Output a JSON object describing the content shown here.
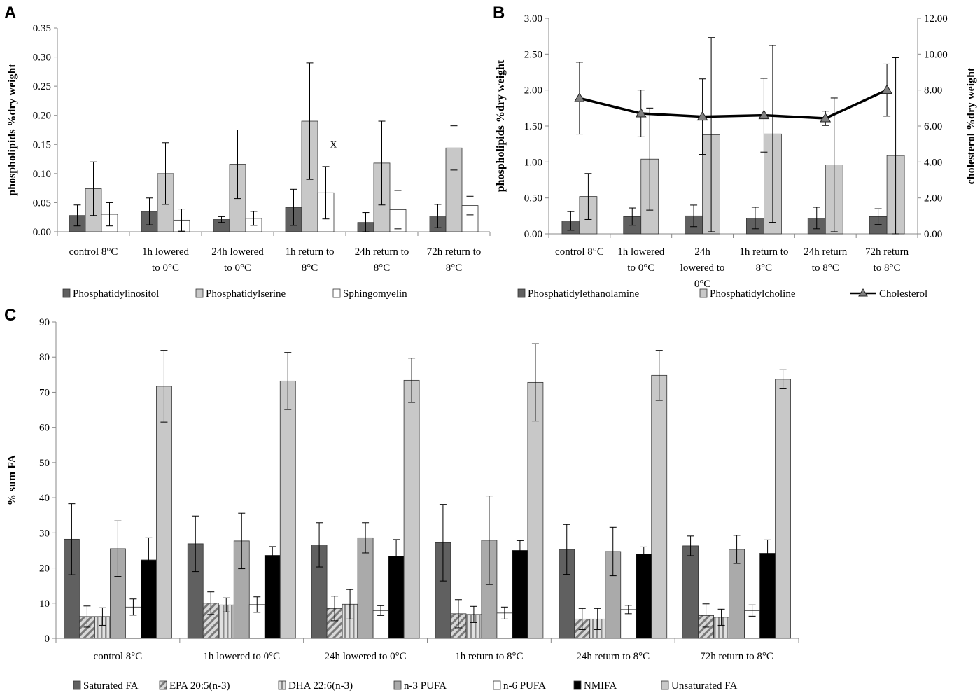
{
  "chart_data": [
    {
      "panel": "A",
      "type": "bar",
      "ylabel": "phospholipids %dry weight",
      "ylim": [
        0,
        0.35
      ],
      "yticks": [
        "0.00",
        "0.05",
        "0.10",
        "0.15",
        "0.20",
        "0.25",
        "0.30",
        "0.35"
      ],
      "categories": [
        [
          "control 8°C"
        ],
        [
          "1h lowered",
          "to 0°C"
        ],
        [
          "24h lowered",
          "to 0°C"
        ],
        [
          "1h return to",
          "8°C"
        ],
        [
          "24h return to",
          "8°C"
        ],
        [
          "72h return to",
          "8°C"
        ]
      ],
      "series": [
        {
          "name": "Phosphatidylinositol",
          "color": "#606060",
          "values": [
            0.028,
            0.035,
            0.021,
            0.042,
            0.016,
            0.027
          ],
          "errors": [
            0.018,
            0.023,
            0.005,
            0.031,
            0.017,
            0.02
          ]
        },
        {
          "name": "Phosphatidylserine",
          "color": "#c8c8c8",
          "values": [
            0.074,
            0.1,
            0.116,
            0.19,
            0.118,
            0.144
          ],
          "errors": [
            0.046,
            0.053,
            0.059,
            0.1,
            0.072,
            0.038
          ]
        },
        {
          "name": "Sphingomyelin",
          "color": "#ffffff",
          "values": [
            0.03,
            0.02,
            0.023,
            0.067,
            0.038,
            0.045
          ],
          "errors": [
            0.02,
            0.019,
            0.012,
            0.045,
            0.033,
            0.016
          ]
        }
      ],
      "annotation": "x",
      "legend_position": "bottom",
      "grid": false
    },
    {
      "panel": "B",
      "type": "bar+line",
      "ylabel": "phospholipids %dry weight",
      "y2label": "cholesterol %dry weight",
      "ylim": [
        0,
        3.0
      ],
      "y2lim": [
        0,
        12.0
      ],
      "yticks": [
        "0.00",
        "0.50",
        "1.00",
        "1.50",
        "2.00",
        "2.50",
        "3.00"
      ],
      "y2ticks": [
        "0.00",
        "2.00",
        "4.00",
        "6.00",
        "8.00",
        "10.00",
        "12.00"
      ],
      "categories": [
        [
          "control 8°C"
        ],
        [
          "1h lowered",
          "to 0°C"
        ],
        [
          "24h",
          "lowered to",
          "0°C"
        ],
        [
          "1h return to",
          "8°C"
        ],
        [
          "24h return",
          "to 8°C"
        ],
        [
          "72h return",
          "to 8°C"
        ]
      ],
      "series": [
        {
          "name": "Phosphatidylethanolamine",
          "color": "#606060",
          "values": [
            0.18,
            0.24,
            0.25,
            0.22,
            0.22,
            0.24
          ],
          "errors": [
            0.13,
            0.12,
            0.15,
            0.15,
            0.15,
            0.11
          ]
        },
        {
          "name": "Phosphatidylcholine",
          "color": "#c8c8c8",
          "values": [
            0.52,
            1.04,
            1.38,
            1.39,
            0.96,
            1.09
          ],
          "errors": [
            0.32,
            0.71,
            1.35,
            1.23,
            0.93,
            1.36
          ]
        }
      ],
      "line_series": {
        "name": "Cholesterol",
        "axis": "right",
        "marker": "triangle",
        "color": "#000000",
        "values": [
          7.55,
          6.7,
          6.52,
          6.6,
          6.43,
          8.0
        ],
        "errors": [
          2.0,
          1.3,
          2.1,
          2.05,
          0.4,
          1.45
        ]
      },
      "legend_position": "bottom",
      "grid": false
    },
    {
      "panel": "C",
      "type": "bar",
      "ylabel": "% sum FA",
      "ylim": [
        0,
        90
      ],
      "yticks": [
        "0",
        "10",
        "20",
        "30",
        "40",
        "50",
        "60",
        "70",
        "80",
        "90"
      ],
      "categories": [
        [
          "control 8°C"
        ],
        [
          "1h lowered to 0°C"
        ],
        [
          "24h lowered to 0°C"
        ],
        [
          "1h return to 8°C"
        ],
        [
          "24h return to 8°C"
        ],
        [
          "72h return to 8°C"
        ]
      ],
      "series": [
        {
          "name": "Saturated FA",
          "color": "#606060",
          "pattern": "solid",
          "values": [
            28.2,
            26.9,
            26.6,
            27.2,
            25.3,
            26.3
          ],
          "errors": [
            10.1,
            7.9,
            6.3,
            10.9,
            7.1,
            2.8
          ]
        },
        {
          "name": "EPA 20:5(n-3)",
          "color": "#b4b4b4",
          "pattern": "diag",
          "values": [
            6.2,
            10.0,
            8.5,
            7.0,
            5.5,
            6.5
          ],
          "errors": [
            3.0,
            3.2,
            3.5,
            4.0,
            3.0,
            3.3
          ]
        },
        {
          "name": "DHA 22:6(n-3)",
          "color": "#b4b4b4",
          "pattern": "vert",
          "values": [
            6.2,
            9.5,
            9.7,
            6.8,
            5.5,
            6.0
          ],
          "errors": [
            2.5,
            2.0,
            4.2,
            2.3,
            3.0,
            2.3
          ]
        },
        {
          "name": "n-3 PUFA",
          "color": "#aaaaaa",
          "pattern": "solid",
          "values": [
            25.5,
            27.7,
            28.6,
            27.9,
            24.7,
            25.3
          ],
          "errors": [
            7.9,
            7.9,
            4.3,
            12.6,
            6.9,
            4.0
          ]
        },
        {
          "name": "n-6 PUFA",
          "color": "#ffffff",
          "pattern": "solid",
          "values": [
            8.9,
            9.6,
            7.9,
            7.2,
            8.2,
            7.9
          ],
          "errors": [
            2.3,
            2.2,
            1.4,
            1.7,
            1.2,
            1.6
          ]
        },
        {
          "name": "NMIFA",
          "color": "#000000",
          "pattern": "solid",
          "values": [
            22.3,
            23.6,
            23.4,
            25.0,
            24.0,
            24.2
          ],
          "errors": [
            6.3,
            2.5,
            4.7,
            2.8,
            2.0,
            3.8
          ]
        },
        {
          "name": "Unsaturated FA",
          "color": "#c8c8c8",
          "pattern": "solid",
          "values": [
            71.7,
            73.2,
            73.4,
            72.8,
            74.8,
            73.7
          ],
          "errors": [
            10.2,
            8.1,
            6.3,
            11.0,
            7.1,
            2.7
          ]
        }
      ],
      "legend_position": "bottom",
      "grid": false
    }
  ]
}
